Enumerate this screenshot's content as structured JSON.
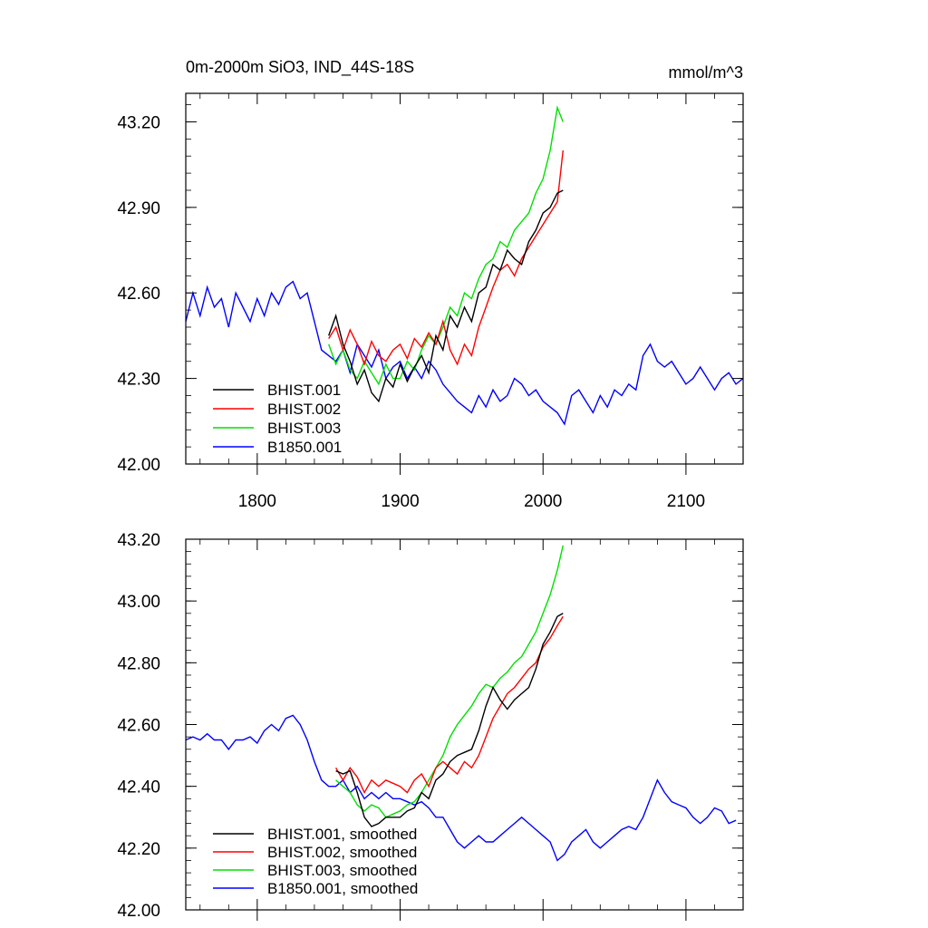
{
  "chart_data": [
    {
      "type": "line",
      "title": "0m-2000m SiO3, IND_44S-18S",
      "units": "mmol/m^3",
      "xlim": [
        1750,
        2140
      ],
      "ylim": [
        42.0,
        43.3
      ],
      "xticks": [
        1800,
        1900,
        2000,
        2100
      ],
      "yticks": [
        42.0,
        42.3,
        42.6,
        42.9,
        43.2
      ],
      "ytick_labels": [
        "42.00",
        "42.30",
        "42.60",
        "42.90",
        "43.20"
      ],
      "xtick_labels": [
        "1800",
        "1900",
        "2000",
        "2100"
      ],
      "legend": "bottom-left",
      "series": [
        {
          "name": "BHIST.001",
          "color": "#000000",
          "x": [
            1850,
            1855,
            1860,
            1865,
            1870,
            1875,
            1880,
            1885,
            1890,
            1895,
            1900,
            1905,
            1910,
            1915,
            1920,
            1925,
            1930,
            1935,
            1940,
            1945,
            1950,
            1955,
            1960,
            1965,
            1970,
            1975,
            1980,
            1985,
            1990,
            1995,
            2000,
            2005,
            2010,
            2014
          ],
          "y": [
            42.45,
            42.52,
            42.42,
            42.36,
            42.28,
            42.33,
            42.25,
            42.22,
            42.3,
            42.27,
            42.35,
            42.29,
            42.34,
            42.38,
            42.32,
            42.45,
            42.4,
            42.52,
            42.48,
            42.55,
            42.5,
            42.6,
            42.62,
            42.7,
            42.68,
            42.75,
            42.72,
            42.7,
            42.78,
            42.82,
            42.88,
            42.9,
            42.95,
            42.96
          ]
        },
        {
          "name": "BHIST.002",
          "color": "#ff0000",
          "x": [
            1850,
            1855,
            1860,
            1865,
            1870,
            1875,
            1880,
            1885,
            1890,
            1895,
            1900,
            1905,
            1910,
            1915,
            1920,
            1925,
            1930,
            1935,
            1940,
            1945,
            1950,
            1955,
            1960,
            1965,
            1970,
            1975,
            1980,
            1985,
            1990,
            1995,
            2000,
            2005,
            2010,
            2014
          ],
          "y": [
            42.44,
            42.48,
            42.4,
            42.47,
            42.42,
            42.35,
            42.43,
            42.38,
            42.36,
            42.4,
            42.42,
            42.37,
            42.44,
            42.41,
            42.46,
            42.42,
            42.5,
            42.4,
            42.35,
            42.42,
            42.38,
            42.48,
            42.55,
            42.62,
            42.68,
            42.7,
            42.66,
            42.72,
            42.76,
            42.8,
            42.84,
            42.88,
            42.92,
            43.1
          ]
        },
        {
          "name": "BHIST.003",
          "color": "#00e000",
          "x": [
            1850,
            1855,
            1860,
            1865,
            1870,
            1875,
            1880,
            1885,
            1890,
            1895,
            1900,
            1905,
            1910,
            1915,
            1920,
            1925,
            1930,
            1935,
            1940,
            1945,
            1950,
            1955,
            1960,
            1965,
            1970,
            1975,
            1980,
            1985,
            1990,
            1995,
            2000,
            2005,
            2010,
            2014
          ],
          "y": [
            42.42,
            42.35,
            42.4,
            42.33,
            42.3,
            42.36,
            42.32,
            42.28,
            42.35,
            42.3,
            42.3,
            42.36,
            42.33,
            42.4,
            42.45,
            42.42,
            42.48,
            42.55,
            42.52,
            42.6,
            42.58,
            42.65,
            42.7,
            42.72,
            42.78,
            42.76,
            42.82,
            42.85,
            42.88,
            42.95,
            43.0,
            43.1,
            43.25,
            43.2
          ]
        },
        {
          "name": "B1850.001",
          "color": "#0000ff",
          "x": [
            1750,
            1755,
            1760,
            1765,
            1770,
            1775,
            1780,
            1785,
            1790,
            1795,
            1800,
            1805,
            1810,
            1815,
            1820,
            1825,
            1830,
            1835,
            1840,
            1845,
            1850,
            1855,
            1860,
            1865,
            1870,
            1875,
            1880,
            1885,
            1890,
            1895,
            1900,
            1905,
            1910,
            1915,
            1920,
            1925,
            1930,
            1935,
            1940,
            1945,
            1950,
            1955,
            1960,
            1965,
            1970,
            1975,
            1980,
            1985,
            1990,
            1995,
            2000,
            2005,
            2010,
            2015,
            2020,
            2025,
            2030,
            2035,
            2040,
            2045,
            2050,
            2055,
            2060,
            2065,
            2070,
            2075,
            2080,
            2085,
            2090,
            2095,
            2100,
            2105,
            2110,
            2115,
            2120,
            2125,
            2130,
            2135,
            2140
          ],
          "y": [
            42.5,
            42.6,
            42.52,
            42.62,
            42.55,
            42.58,
            42.48,
            42.6,
            42.55,
            42.5,
            42.58,
            42.52,
            42.6,
            42.56,
            42.62,
            42.64,
            42.58,
            42.6,
            42.5,
            42.4,
            42.38,
            42.36,
            42.4,
            42.32,
            42.42,
            42.38,
            42.34,
            42.4,
            42.3,
            42.34,
            42.36,
            42.3,
            42.34,
            42.3,
            42.36,
            42.33,
            42.28,
            42.25,
            42.22,
            42.2,
            42.18,
            42.24,
            42.2,
            42.26,
            42.22,
            42.24,
            42.3,
            42.28,
            42.24,
            42.26,
            42.22,
            42.2,
            42.18,
            42.14,
            42.24,
            42.26,
            42.22,
            42.18,
            42.24,
            42.2,
            42.26,
            42.24,
            42.28,
            42.26,
            42.38,
            42.42,
            42.36,
            42.34,
            42.36,
            42.32,
            42.28,
            42.3,
            42.34,
            42.3,
            42.26,
            42.3,
            42.32,
            42.28,
            42.3
          ]
        }
      ]
    },
    {
      "type": "line",
      "xlim": [
        1750,
        2140
      ],
      "ylim": [
        42.0,
        43.2
      ],
      "xticks": [
        1800,
        1900,
        2000,
        2100
      ],
      "yticks": [
        42.0,
        42.2,
        42.4,
        42.6,
        42.8,
        43.0,
        43.2
      ],
      "ytick_labels": [
        "42.00",
        "42.20",
        "42.40",
        "42.60",
        "42.80",
        "43.00",
        "43.20"
      ],
      "legend": "bottom-left",
      "series": [
        {
          "name": "BHIST.001, smoothed",
          "color": "#000000",
          "x": [
            1855,
            1860,
            1865,
            1870,
            1875,
            1880,
            1885,
            1890,
            1895,
            1900,
            1905,
            1910,
            1915,
            1920,
            1925,
            1930,
            1935,
            1940,
            1945,
            1950,
            1955,
            1960,
            1965,
            1970,
            1975,
            1980,
            1985,
            1990,
            1995,
            2000,
            2005,
            2010,
            2014
          ],
          "y": [
            42.45,
            42.44,
            42.45,
            42.38,
            42.3,
            42.27,
            42.28,
            42.3,
            42.3,
            42.3,
            42.32,
            42.33,
            42.38,
            42.36,
            42.42,
            42.44,
            42.48,
            42.5,
            42.51,
            42.52,
            42.58,
            42.66,
            42.72,
            42.68,
            42.65,
            42.68,
            42.7,
            42.72,
            42.78,
            42.86,
            42.9,
            42.95,
            42.96
          ]
        },
        {
          "name": "BHIST.002, smoothed",
          "color": "#ff0000",
          "x": [
            1855,
            1860,
            1865,
            1870,
            1875,
            1880,
            1885,
            1890,
            1895,
            1900,
            1905,
            1910,
            1915,
            1920,
            1925,
            1930,
            1935,
            1940,
            1945,
            1950,
            1955,
            1960,
            1965,
            1970,
            1975,
            1980,
            1985,
            1990,
            1995,
            2000,
            2005,
            2010,
            2014
          ],
          "y": [
            42.46,
            42.42,
            42.46,
            42.43,
            42.38,
            42.42,
            42.4,
            42.42,
            42.41,
            42.4,
            42.38,
            42.42,
            42.44,
            42.4,
            42.46,
            42.48,
            42.46,
            42.44,
            42.48,
            42.46,
            42.5,
            42.56,
            42.62,
            42.66,
            42.7,
            42.72,
            42.75,
            42.78,
            42.8,
            42.85,
            42.88,
            42.92,
            42.95
          ]
        },
        {
          "name": "BHIST.003, smoothed",
          "color": "#00e000",
          "x": [
            1855,
            1860,
            1865,
            1870,
            1875,
            1880,
            1885,
            1890,
            1895,
            1900,
            1905,
            1910,
            1915,
            1920,
            1925,
            1930,
            1935,
            1940,
            1945,
            1950,
            1955,
            1960,
            1965,
            1970,
            1975,
            1980,
            1985,
            1990,
            1995,
            2000,
            2005,
            2010,
            2014
          ],
          "y": [
            42.42,
            42.4,
            42.38,
            42.34,
            42.32,
            42.34,
            42.33,
            42.3,
            42.31,
            42.32,
            42.34,
            42.35,
            42.38,
            42.42,
            42.46,
            42.5,
            42.56,
            42.6,
            42.63,
            42.66,
            42.7,
            42.73,
            42.72,
            42.75,
            42.77,
            42.8,
            42.82,
            42.86,
            42.9,
            42.96,
            43.02,
            43.1,
            43.18
          ]
        },
        {
          "name": "B1850.001, smoothed",
          "color": "#0000ff",
          "x": [
            1750,
            1755,
            1760,
            1765,
            1770,
            1775,
            1780,
            1785,
            1790,
            1795,
            1800,
            1805,
            1810,
            1815,
            1820,
            1825,
            1830,
            1835,
            1840,
            1845,
            1850,
            1855,
            1860,
            1865,
            1870,
            1875,
            1880,
            1885,
            1890,
            1895,
            1900,
            1905,
            1910,
            1915,
            1920,
            1925,
            1930,
            1935,
            1940,
            1945,
            1950,
            1955,
            1960,
            1965,
            1970,
            1975,
            1980,
            1985,
            1990,
            1995,
            2000,
            2005,
            2010,
            2015,
            2020,
            2025,
            2030,
            2035,
            2040,
            2045,
            2050,
            2055,
            2060,
            2065,
            2070,
            2075,
            2080,
            2085,
            2090,
            2095,
            2100,
            2105,
            2110,
            2115,
            2120,
            2125,
            2130,
            2135
          ],
          "y": [
            42.55,
            42.56,
            42.55,
            42.57,
            42.55,
            42.55,
            42.52,
            42.55,
            42.55,
            42.56,
            42.54,
            42.58,
            42.6,
            42.58,
            42.62,
            42.63,
            42.6,
            42.55,
            42.48,
            42.42,
            42.4,
            42.4,
            42.42,
            42.38,
            42.4,
            42.36,
            42.38,
            42.36,
            42.38,
            42.36,
            42.36,
            42.35,
            42.34,
            42.35,
            42.33,
            42.3,
            42.3,
            42.26,
            42.22,
            42.2,
            42.22,
            42.24,
            42.22,
            42.22,
            42.24,
            42.26,
            42.28,
            42.3,
            42.28,
            42.26,
            42.24,
            42.22,
            42.16,
            42.18,
            42.22,
            42.24,
            42.26,
            42.22,
            42.2,
            42.22,
            42.24,
            42.26,
            42.27,
            42.26,
            42.3,
            42.36,
            42.42,
            42.38,
            42.35,
            42.34,
            42.33,
            42.3,
            42.28,
            42.3,
            42.33,
            42.32,
            42.28,
            42.29
          ]
        }
      ]
    }
  ]
}
